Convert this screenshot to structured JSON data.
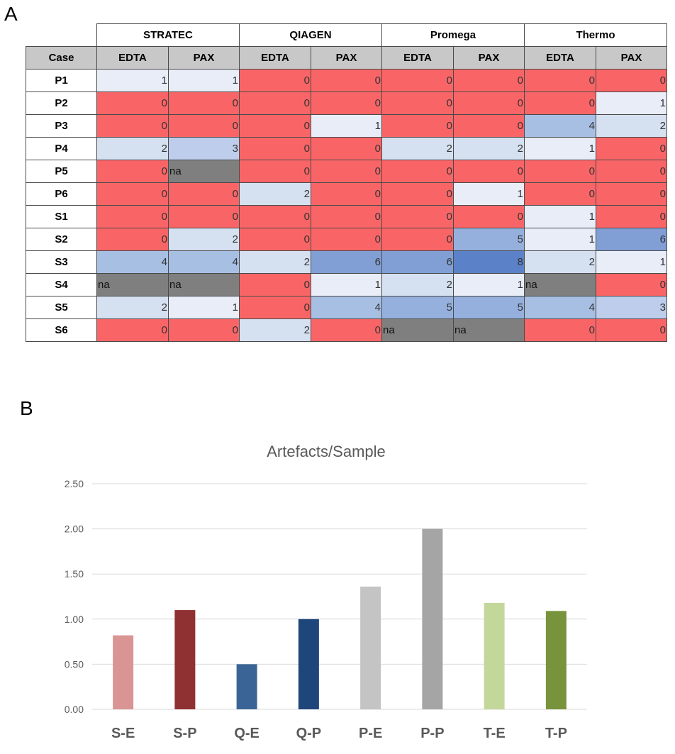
{
  "panels": {
    "a": "A",
    "b": "B"
  },
  "colors": {
    "zero_cell": "#f96566",
    "na_cell": "#7f7f7f",
    "scale": {
      "1": "#e8edf8",
      "2": "#d5e0f1",
      "3": "#bdcdeb",
      "4": "#a8bfe4",
      "5": "#95b0dd",
      "6": "#819fd5",
      "8": "#5b82c8"
    }
  },
  "table": {
    "case_header": "Case",
    "vendors": [
      "STRATEC",
      "QIAGEN",
      "Promega",
      "Thermo"
    ],
    "sub_headers": [
      "EDTA",
      "PAX"
    ],
    "rows": [
      {
        "case": "P1",
        "values": [
          "1",
          "1",
          "0",
          "0",
          "0",
          "0",
          "0",
          "0"
        ]
      },
      {
        "case": "P2",
        "values": [
          "0",
          "0",
          "0",
          "0",
          "0",
          "0",
          "0",
          "1"
        ]
      },
      {
        "case": "P3",
        "values": [
          "0",
          "0",
          "0",
          "1",
          "0",
          "0",
          "4",
          "2"
        ]
      },
      {
        "case": "P4",
        "values": [
          "2",
          "3",
          "0",
          "0",
          "2",
          "2",
          "1",
          "0"
        ]
      },
      {
        "case": "P5",
        "values": [
          "0",
          "na",
          "0",
          "0",
          "0",
          "0",
          "0",
          "0"
        ]
      },
      {
        "case": "P6",
        "values": [
          "0",
          "0",
          "2",
          "0",
          "0",
          "1",
          "0",
          "0"
        ]
      },
      {
        "case": "S1",
        "values": [
          "0",
          "0",
          "0",
          "0",
          "0",
          "0",
          "1",
          "0"
        ]
      },
      {
        "case": "S2",
        "values": [
          "0",
          "2",
          "0",
          "0",
          "0",
          "5",
          "1",
          "6"
        ]
      },
      {
        "case": "S3",
        "values": [
          "4",
          "4",
          "2",
          "6",
          "6",
          "8",
          "2",
          "1"
        ]
      },
      {
        "case": "S4",
        "values": [
          "na",
          "na",
          "0",
          "1",
          "2",
          "1",
          "na",
          "0"
        ]
      },
      {
        "case": "S5",
        "values": [
          "2",
          "1",
          "0",
          "4",
          "5",
          "5",
          "4",
          "3"
        ]
      },
      {
        "case": "S6",
        "values": [
          "0",
          "0",
          "2",
          "0",
          "na",
          "na",
          "0",
          "0"
        ]
      }
    ]
  },
  "chart_data": {
    "type": "bar",
    "title": "Artefacts/Sample",
    "categories": [
      "S-E",
      "S-P",
      "Q-E",
      "Q-P",
      "P-E",
      "P-P",
      "T-E",
      "T-P"
    ],
    "values": [
      0.82,
      1.1,
      0.5,
      1.0,
      1.36,
      2.0,
      1.18,
      1.09
    ],
    "bar_colors": [
      "#d99594",
      "#8f3132",
      "#3a6496",
      "#1f467a",
      "#c4c4c4",
      "#a5a5a5",
      "#c3d79b",
      "#77933c"
    ],
    "yticks": [
      "0.00",
      "0.50",
      "1.00",
      "1.50",
      "2.00",
      "2.50"
    ],
    "ylim": [
      0,
      2.5
    ],
    "grid": true,
    "xlabel": "",
    "ylabel": ""
  }
}
